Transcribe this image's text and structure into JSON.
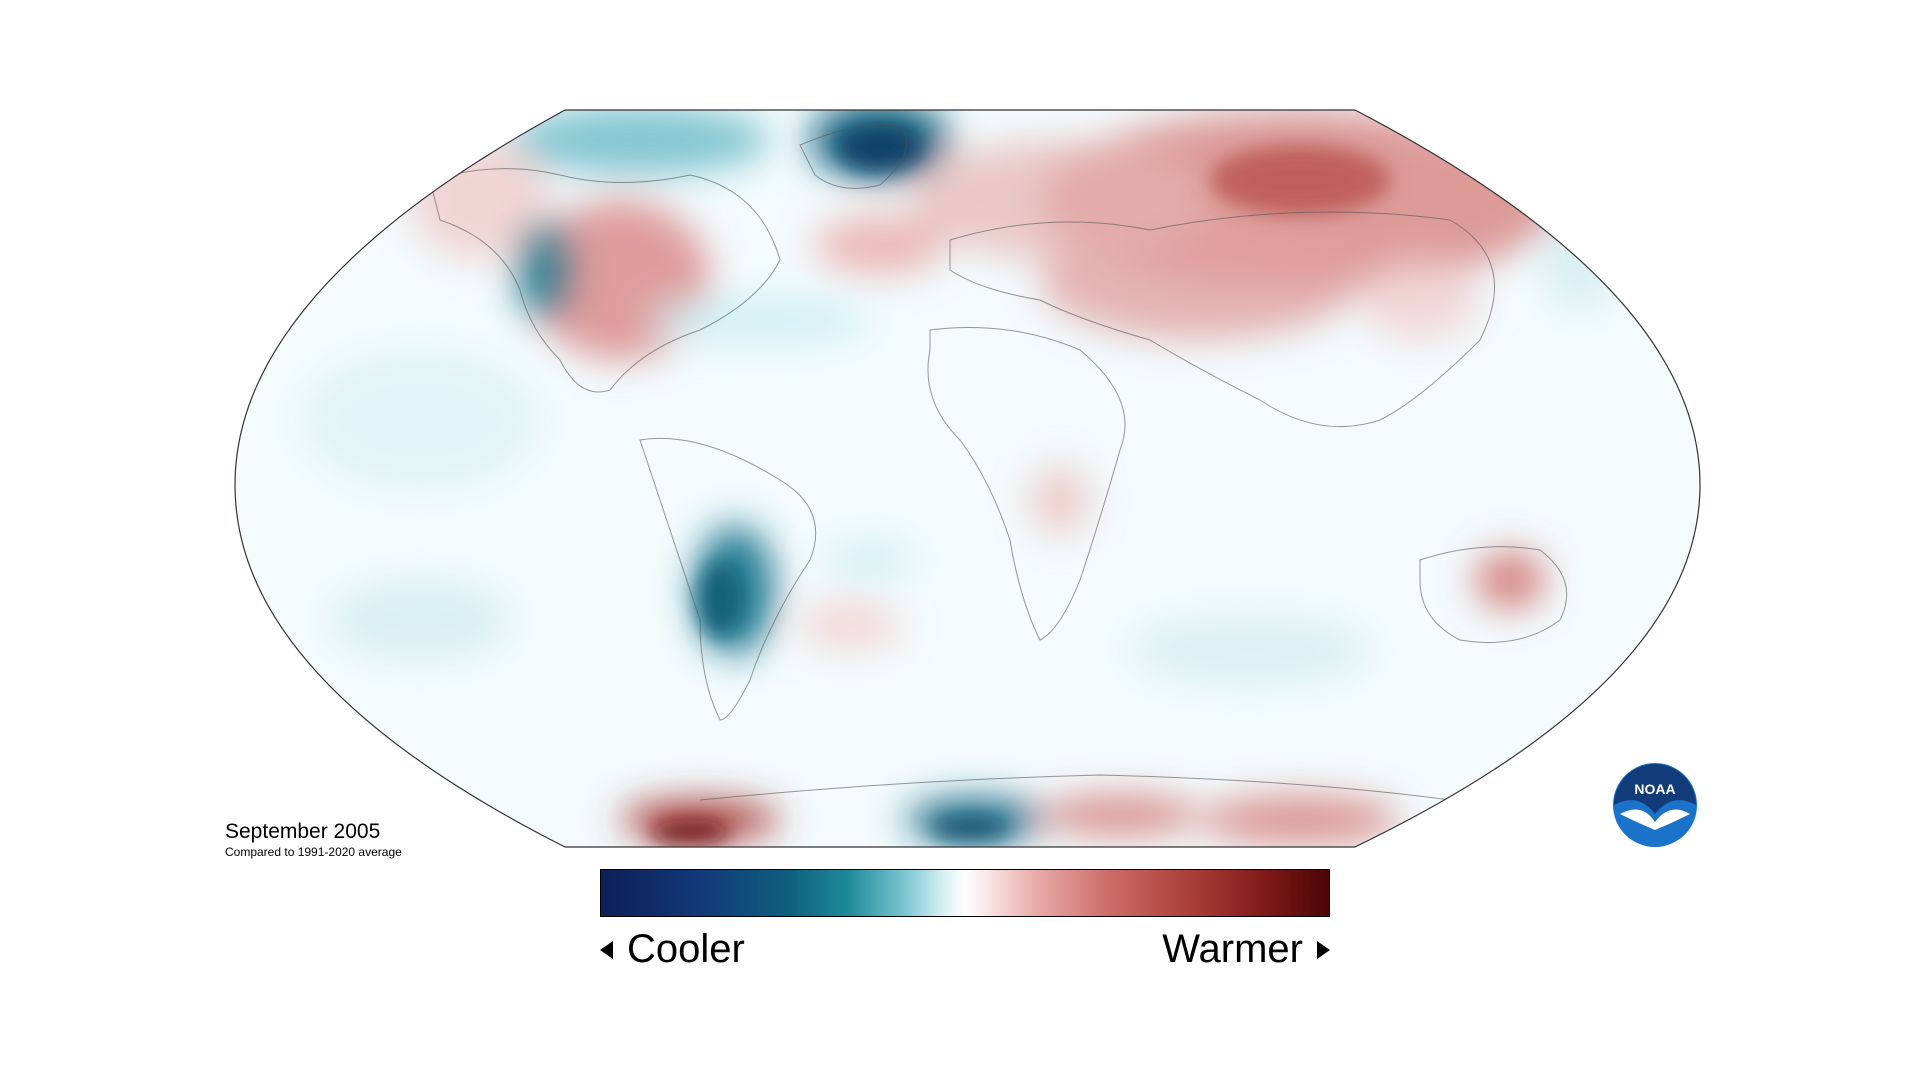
{
  "caption": {
    "date": "September 2005",
    "subtitle": "Compared to 1991-2020 average"
  },
  "legend": {
    "left_label": "Cooler",
    "right_label": "Warmer",
    "left_icon": "triangle-left-icon",
    "right_icon": "triangle-right-icon"
  },
  "logo": {
    "text": "NOAA",
    "icon": "noaa-logo-icon"
  },
  "colors": {
    "cool_deep": "#0d1f57",
    "cool": "#0f607e",
    "neutral": "#ffffff",
    "warm": "#cc6b66",
    "warm_deep": "#4a0505",
    "noaa_blue": "#1a5ea8"
  }
}
